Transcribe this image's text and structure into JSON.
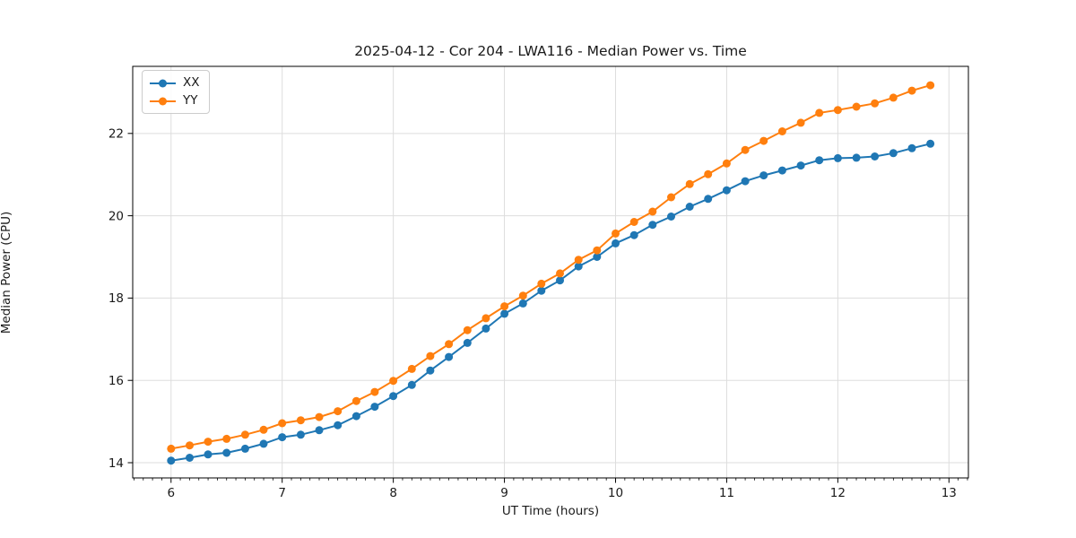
{
  "chart_data": {
    "type": "line",
    "title": "2025-04-12 - Cor 204 - LWA116 - Median Power vs. Time",
    "xlabel": "UT Time (hours)",
    "ylabel": "Median Power (CPU)",
    "xlim": [
      5.655,
      13.175
    ],
    "ylim": [
      13.63,
      23.63
    ],
    "xticks": [
      6,
      7,
      8,
      9,
      10,
      11,
      12,
      13
    ],
    "yticks": [
      14,
      16,
      18,
      20,
      22
    ],
    "grid": true,
    "legend_position": "upper-left",
    "x": [
      6.0,
      6.167,
      6.333,
      6.5,
      6.667,
      6.833,
      7.0,
      7.167,
      7.333,
      7.5,
      7.667,
      7.833,
      8.0,
      8.167,
      8.333,
      8.5,
      8.667,
      8.833,
      9.0,
      9.167,
      9.333,
      9.5,
      9.667,
      9.833,
      10.0,
      10.167,
      10.333,
      10.5,
      10.667,
      10.833,
      11.0,
      11.167,
      11.333,
      11.5,
      11.667,
      11.833,
      12.0,
      12.167,
      12.333,
      12.5,
      12.667,
      12.833
    ],
    "series": [
      {
        "name": "XX",
        "color": "#1f77b4",
        "values": [
          14.05,
          14.12,
          14.2,
          14.24,
          14.34,
          14.46,
          14.62,
          14.68,
          14.79,
          14.91,
          15.13,
          15.36,
          15.62,
          15.89,
          16.24,
          16.57,
          16.91,
          17.26,
          17.62,
          17.87,
          18.18,
          18.43,
          18.77,
          19.0,
          19.33,
          19.53,
          19.78,
          19.98,
          20.22,
          20.41,
          20.62,
          20.84,
          20.98,
          21.1,
          21.22,
          21.35,
          21.4,
          21.41,
          21.44,
          21.52,
          21.64,
          21.75
        ]
      },
      {
        "name": "YY",
        "color": "#ff7f0e",
        "values": [
          14.34,
          14.42,
          14.51,
          14.58,
          14.68,
          14.8,
          14.96,
          15.03,
          15.11,
          15.25,
          15.5,
          15.72,
          15.99,
          16.28,
          16.59,
          16.88,
          17.22,
          17.51,
          17.8,
          18.06,
          18.35,
          18.6,
          18.93,
          19.16,
          19.57,
          19.85,
          20.1,
          20.45,
          20.77,
          21.01,
          21.27,
          21.6,
          21.82,
          22.05,
          22.26,
          22.5,
          22.57,
          22.65,
          22.73,
          22.87,
          23.04,
          23.17
        ]
      }
    ]
  }
}
